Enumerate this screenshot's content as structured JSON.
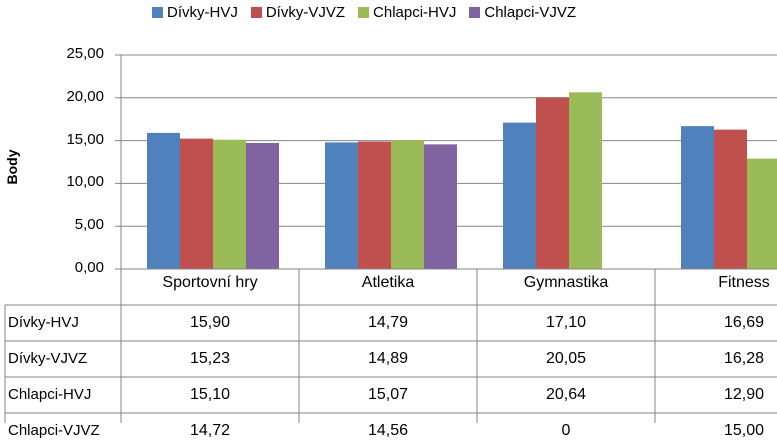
{
  "chart_data": {
    "type": "bar",
    "ylabel": "Body",
    "ylim": [
      0,
      25
    ],
    "yticks": [
      "0,00",
      "5,00",
      "10,00",
      "15,00",
      "20,00",
      "25,00"
    ],
    "grid": true,
    "legend_position": "top",
    "categories": [
      "Sportovní hry",
      "Atletika",
      "Gymnastika",
      "Fitness"
    ],
    "series": [
      {
        "name": "Dívky-HVJ",
        "color": "#4f81bd",
        "values": [
          15.9,
          14.79,
          17.1,
          16.69
        ],
        "labels": [
          "15,90",
          "14,79",
          "17,10",
          "16,69"
        ]
      },
      {
        "name": "Dívky-VJVZ",
        "color": "#c0504d",
        "values": [
          15.23,
          14.89,
          20.05,
          16.28
        ],
        "labels": [
          "15,23",
          "14,89",
          "20,05",
          "16,28"
        ]
      },
      {
        "name": "Chlapci-HVJ",
        "color": "#9bbb59",
        "values": [
          15.1,
          15.07,
          20.64,
          12.9
        ],
        "labels": [
          "15,10",
          "15,07",
          "20,64",
          "12,90"
        ]
      },
      {
        "name": "Chlapci-VJVZ",
        "color": "#8064a2",
        "values": [
          14.72,
          14.56,
          0,
          15.0
        ],
        "labels": [
          "14,72",
          "14,56",
          "0",
          "15,00"
        ]
      }
    ]
  }
}
